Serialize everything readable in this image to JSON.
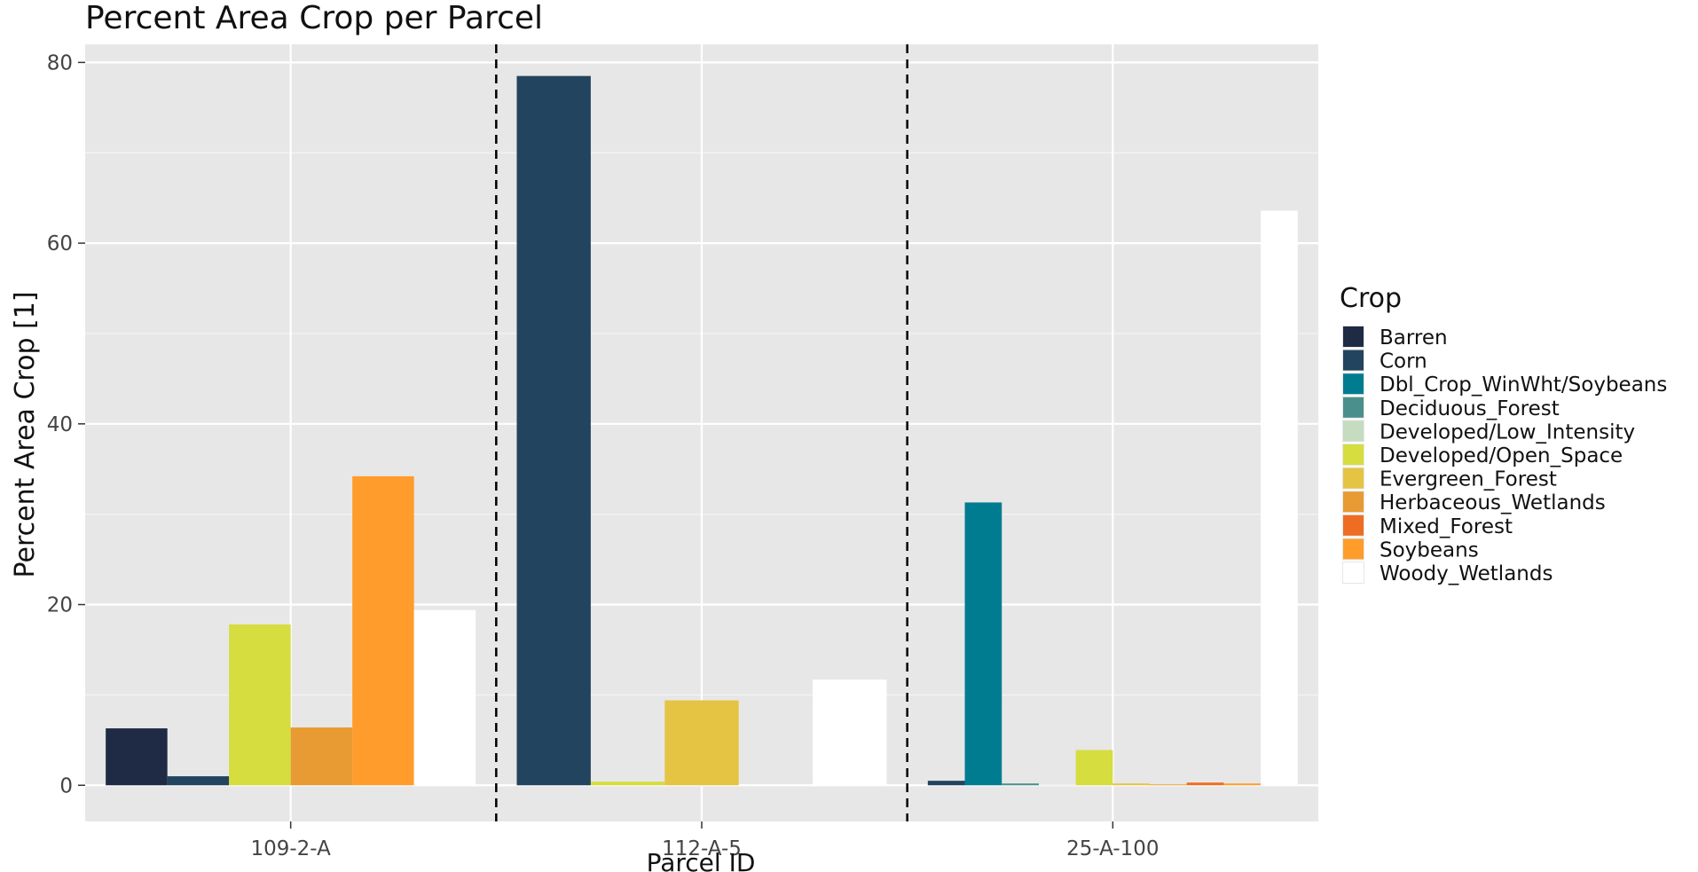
{
  "chart_data": {
    "type": "bar",
    "title": "Percent Area Crop per Parcel",
    "xlabel": "Parcel ID",
    "ylabel": "Percent Area Crop [1]",
    "ylim": [
      -4,
      82
    ],
    "yticks": [
      0,
      20,
      40,
      60,
      80
    ],
    "grid": true,
    "legend": {
      "title": "Crop",
      "placement": "right"
    },
    "series": [
      {
        "name": "Barren",
        "color": "#1f2a44"
      },
      {
        "name": "Corn",
        "color": "#23445e"
      },
      {
        "name": "Dbl_Crop_WinWht/Soybeans",
        "color": "#007c91"
      },
      {
        "name": "Deciduous_Forest",
        "color": "#4b8f8c"
      },
      {
        "name": "Developed/Low_Intensity",
        "color": "#c5dcc0"
      },
      {
        "name": "Developed/Open_Space",
        "color": "#d5dd3f"
      },
      {
        "name": "Evergreen_Forest",
        "color": "#e5c444"
      },
      {
        "name": "Herbaceous_Wetlands",
        "color": "#e89a33"
      },
      {
        "name": "Mixed_Forest",
        "color": "#ee6d22"
      },
      {
        "name": "Soybeans",
        "color": "#ff9c2b"
      },
      {
        "name": "Woody_Wetlands",
        "color": "#ffffff"
      }
    ],
    "groups": [
      {
        "label": "109-2-A",
        "bars": [
          {
            "series": "Barren",
            "value": 6.3
          },
          {
            "series": "Corn",
            "value": 1.0
          },
          {
            "series": "Developed/Open_Space",
            "value": 17.8
          },
          {
            "series": "Herbaceous_Wetlands",
            "value": 6.4
          },
          {
            "series": "Soybeans",
            "value": 34.2
          },
          {
            "series": "Woody_Wetlands",
            "value": 19.4
          }
        ]
      },
      {
        "label": "112-A-5",
        "bars": [
          {
            "series": "Corn",
            "value": 78.5
          },
          {
            "series": "Developed/Open_Space",
            "value": 0.4
          },
          {
            "series": "Evergreen_Forest",
            "value": 9.4
          },
          {
            "series": "Herbaceous_Wetlands",
            "value": 0.0
          },
          {
            "series": "Woody_Wetlands",
            "value": 11.7
          }
        ]
      },
      {
        "label": "25-A-100",
        "bars": [
          {
            "series": "Corn",
            "value": 0.5
          },
          {
            "series": "Dbl_Crop_WinWht/Soybeans",
            "value": 31.3
          },
          {
            "series": "Deciduous_Forest",
            "value": 0.2
          },
          {
            "series": "Developed/Low_Intensity",
            "value": 0.05
          },
          {
            "series": "Developed/Open_Space",
            "value": 3.9
          },
          {
            "series": "Evergreen_Forest",
            "value": 0.2
          },
          {
            "series": "Herbaceous_Wetlands",
            "value": 0.1
          },
          {
            "series": "Mixed_Forest",
            "value": 0.3
          },
          {
            "series": "Soybeans",
            "value": 0.2
          },
          {
            "series": "Woody_Wetlands",
            "value": 63.6
          }
        ]
      }
    ]
  }
}
